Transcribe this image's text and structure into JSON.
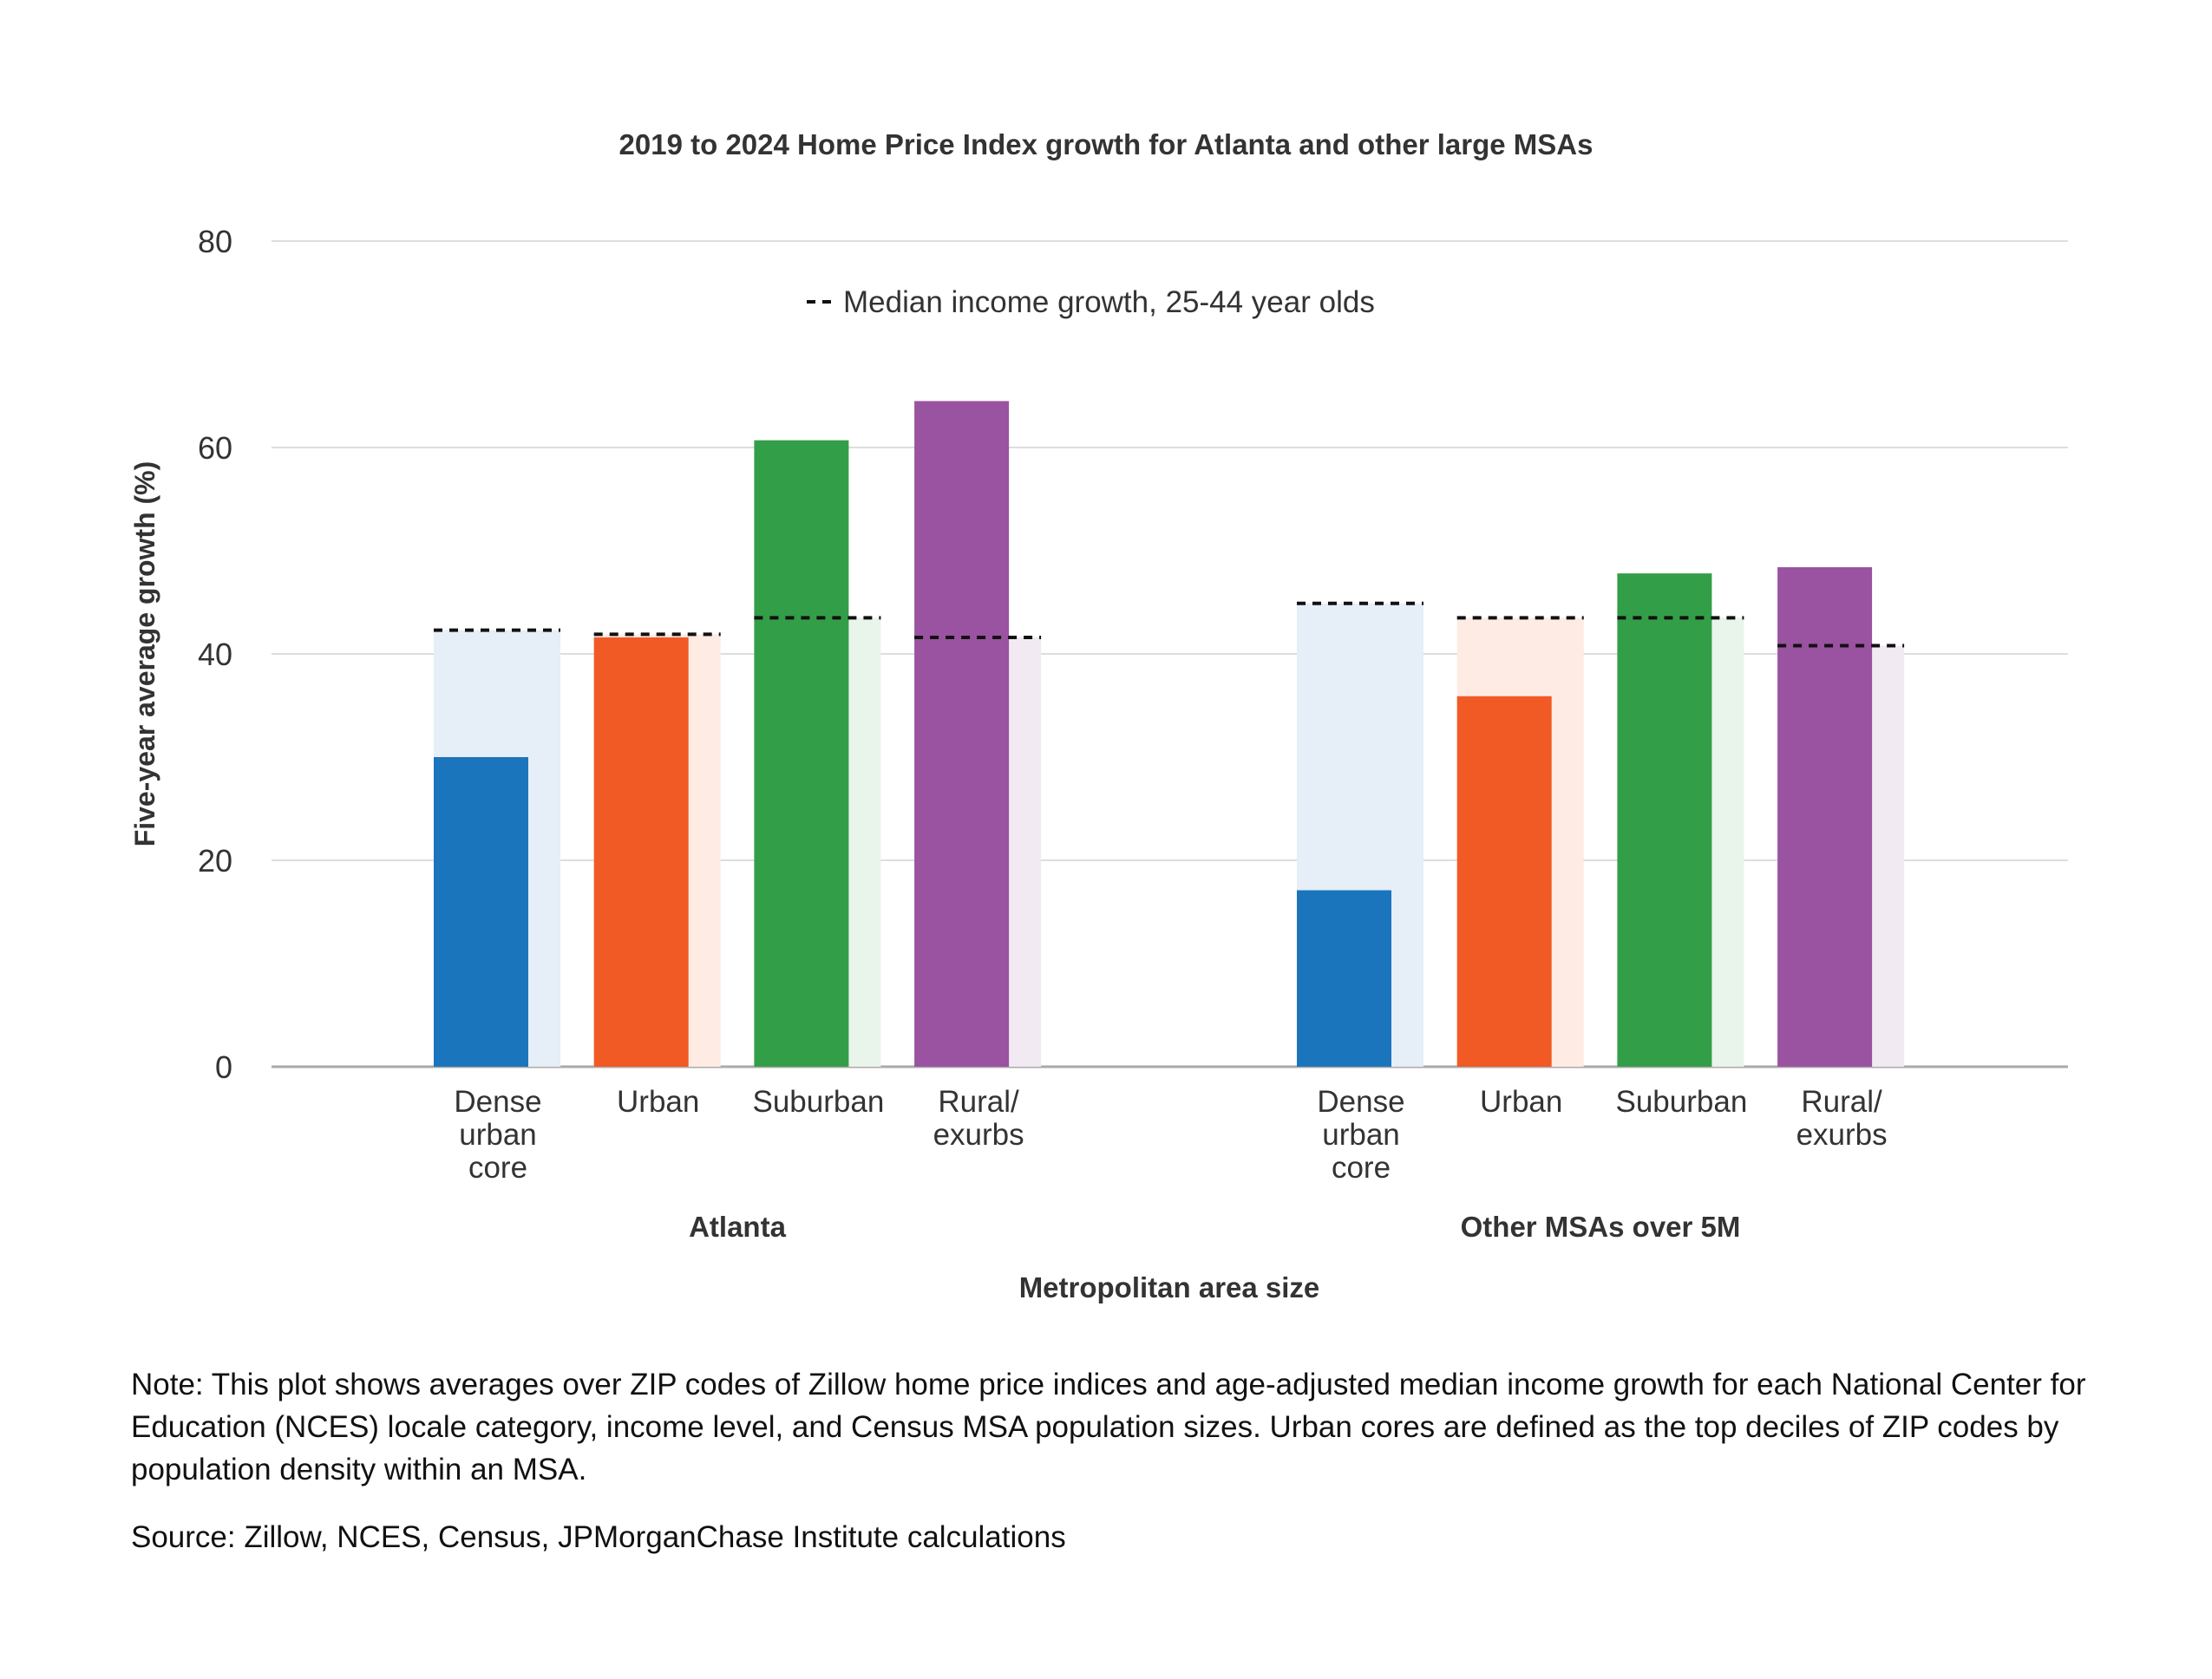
{
  "chart_data": {
    "type": "bar",
    "title": "2019 to 2024 Home Price Index growth for Atlanta and other large MSAs",
    "xlabel": "Metropolitan area size",
    "ylabel": "Five-year average growth (%)",
    "ylim": [
      0,
      80
    ],
    "yticks": [
      "0",
      "20",
      "40",
      "60",
      "80"
    ],
    "grid": true,
    "legend": {
      "label": "Median income growth, 25-44 year olds",
      "placement": "top-center"
    },
    "groups": [
      {
        "name": "Atlanta",
        "categories": [
          {
            "label": [
              "Dense",
              "urban",
              "core"
            ],
            "hpi": 30.0,
            "income": 42.3
          },
          {
            "label": [
              "Urban"
            ],
            "hpi": 41.6,
            "income": 41.9
          },
          {
            "label": [
              "Suburban"
            ],
            "hpi": 60.7,
            "income": 43.5
          },
          {
            "label": [
              "Rural/",
              "exurbs"
            ],
            "hpi": 64.5,
            "income": 41.6
          }
        ]
      },
      {
        "name": "Other MSAs over 5M",
        "categories": [
          {
            "label": [
              "Dense",
              "urban",
              "core"
            ],
            "hpi": 17.1,
            "income": 44.9
          },
          {
            "label": [
              "Urban"
            ],
            "hpi": 35.9,
            "income": 43.5
          },
          {
            "label": [
              "Suburban"
            ],
            "hpi": 47.8,
            "income": 43.5
          },
          {
            "label": [
              "Rural/",
              "exurbs"
            ],
            "hpi": 48.4,
            "income": 40.8
          }
        ]
      }
    ],
    "colors": {
      "dense": "#1b75bc",
      "urban": "#f15a24",
      "suburban": "#339e48",
      "rural": "#9a53a0",
      "dense_light": "#e6eef7",
      "urban_light": "#fdebe4",
      "suburban_light": "#e9f4eb",
      "rural_light": "#f2eaf3"
    }
  },
  "notes": {
    "note": "Note: This plot shows averages over ZIP codes of Zillow home price indices and age-adjusted median income growth for each National Center for Education (NCES) locale category, income level, and Census MSA population sizes. Urban cores are defined as the top deciles of ZIP codes by population density within an MSA.",
    "source": "Source: Zillow, NCES, Census, JPMorganChase Institute calculations"
  }
}
